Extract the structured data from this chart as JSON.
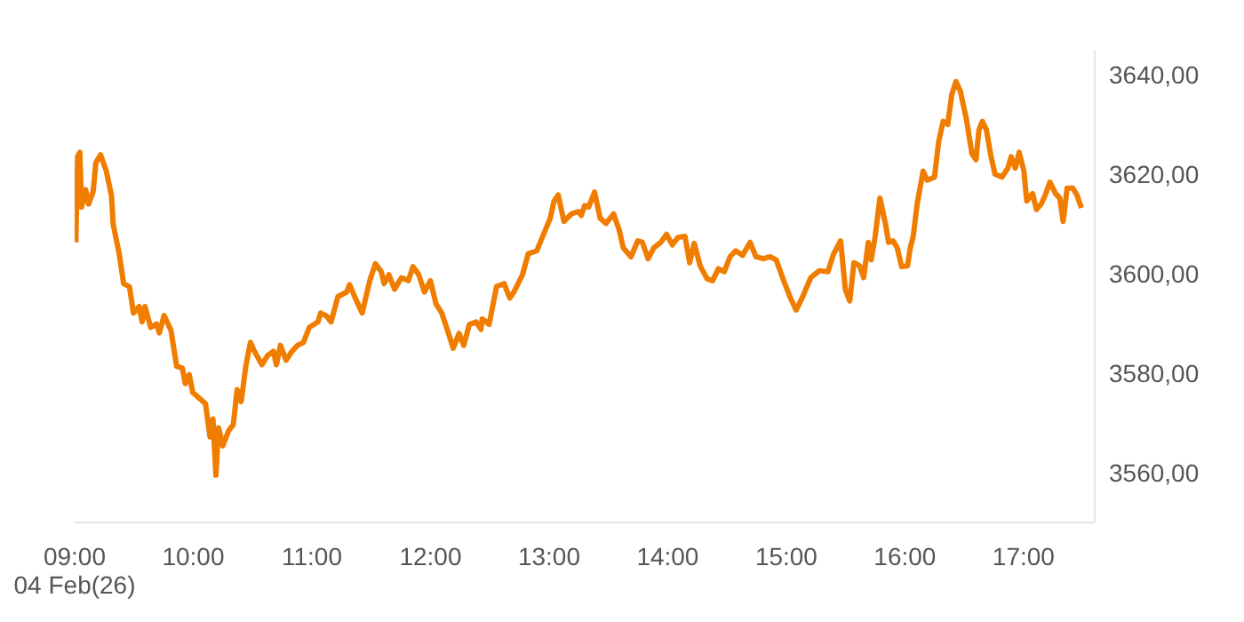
{
  "chart_data": {
    "type": "line",
    "marker": "none",
    "line_style": "solid",
    "grid": false,
    "legend": false,
    "xlim": [
      9,
      17.6
    ],
    "ylim": [
      3550,
      3645
    ],
    "xticks": [
      {
        "value": 9,
        "label": "09:00\n04 Feb(26)"
      },
      {
        "value": 10,
        "label": "10:00"
      },
      {
        "value": 11,
        "label": "11:00"
      },
      {
        "value": 12,
        "label": "12:00"
      },
      {
        "value": 13,
        "label": "13:00"
      },
      {
        "value": 14,
        "label": "14:00"
      },
      {
        "value": 15,
        "label": "15:00"
      },
      {
        "value": 16,
        "label": "16:00"
      },
      {
        "value": 17,
        "label": "17:00"
      }
    ],
    "yticks": [
      {
        "value": 3560,
        "label": "3560,00"
      },
      {
        "value": 3580,
        "label": "3580,00"
      },
      {
        "value": 3600,
        "label": "3600,00"
      },
      {
        "value": 3620,
        "label": "3620,00"
      },
      {
        "value": 3640,
        "label": "3640,00"
      }
    ],
    "series": [
      {
        "color": "#f07c00",
        "x": [
          9.01,
          9.025,
          9.044,
          9.058,
          9.092,
          9.117,
          9.156,
          9.179,
          9.219,
          9.267,
          9.31,
          9.325,
          9.375,
          9.413,
          9.462,
          9.496,
          9.544,
          9.569,
          9.593,
          9.641,
          9.69,
          9.714,
          9.754,
          9.812,
          9.86,
          9.908,
          9.933,
          9.966,
          9.996,
          10.054,
          10.103,
          10.141,
          10.166,
          10.191,
          10.214,
          10.249,
          10.297,
          10.337,
          10.37,
          10.404,
          10.443,
          10.482,
          10.516,
          10.579,
          10.628,
          10.676,
          10.701,
          10.735,
          10.783,
          10.832,
          10.88,
          10.929,
          10.978,
          11.051,
          11.074,
          11.124,
          11.162,
          11.22,
          11.293,
          11.318,
          11.366,
          11.424,
          11.488,
          11.536,
          11.585,
          11.609,
          11.649,
          11.697,
          11.755,
          11.813,
          11.853,
          11.901,
          11.949,
          11.999,
          12.047,
          12.095,
          12.144,
          12.192,
          12.241,
          12.28,
          12.328,
          12.386,
          12.426,
          12.436,
          12.494,
          12.557,
          12.62,
          12.669,
          12.703,
          12.776,
          12.824,
          12.897,
          12.946,
          13.009,
          13.042,
          13.077,
          13.125,
          13.188,
          13.246,
          13.271,
          13.3,
          13.334,
          13.383,
          13.431,
          13.48,
          13.544,
          13.592,
          13.625,
          13.69,
          13.748,
          13.786,
          13.835,
          13.883,
          13.942,
          13.99,
          14.039,
          14.087,
          14.146,
          14.185,
          14.223,
          14.273,
          14.331,
          14.379,
          14.427,
          14.477,
          14.525,
          14.573,
          14.631,
          14.695,
          14.743,
          14.806,
          14.864,
          14.914,
          14.987,
          15.035,
          15.083,
          15.133,
          15.206,
          15.278,
          15.351,
          15.399,
          15.458,
          15.497,
          15.535,
          15.57,
          15.618,
          15.652,
          15.691,
          15.716,
          15.749,
          15.789,
          15.837,
          15.862,
          15.9,
          15.935,
          15.972,
          16.022,
          16.045,
          16.07,
          16.103,
          16.153,
          16.187,
          16.249,
          16.284,
          16.322,
          16.361,
          16.395,
          16.43,
          16.468,
          16.517,
          16.565,
          16.599,
          16.624,
          16.653,
          16.687,
          16.726,
          16.759,
          16.818,
          16.867,
          16.896,
          16.93,
          16.963,
          17.003,
          17.027,
          17.076,
          17.109,
          17.149,
          17.188,
          17.222,
          17.27,
          17.305,
          17.334,
          17.367,
          17.415,
          17.45,
          17.488
        ],
        "values": [
          3606.3,
          3623.5,
          3624.4,
          3613.4,
          3616.9,
          3614,
          3616.5,
          3622.3,
          3623.9,
          3620.6,
          3615.8,
          3609.9,
          3604.1,
          3598,
          3597.4,
          3592.1,
          3593.4,
          3590.3,
          3593.4,
          3589.2,
          3589.9,
          3588.1,
          3591.6,
          3588.6,
          3581.4,
          3581,
          3577.9,
          3579.7,
          3576.1,
          3574.9,
          3573.9,
          3567.2,
          3570.8,
          3559.5,
          3569,
          3565.4,
          3568.4,
          3569.6,
          3576.7,
          3574.3,
          3581.4,
          3586.2,
          3584.4,
          3581.7,
          3583.6,
          3584.4,
          3581.7,
          3585.6,
          3582.6,
          3584.4,
          3585.6,
          3586.2,
          3589.2,
          3590.3,
          3592.1,
          3591.5,
          3590.3,
          3595.4,
          3596.3,
          3597.8,
          3595.1,
          3592.1,
          3598.6,
          3602,
          3600.4,
          3598,
          3599.8,
          3596.9,
          3599.2,
          3598.6,
          3601.4,
          3599.8,
          3596.3,
          3598.6,
          3593.9,
          3592.1,
          3588.6,
          3585,
          3588,
          3585.6,
          3589.8,
          3590.3,
          3588.8,
          3590.9,
          3589.8,
          3597.4,
          3598,
          3595.1,
          3596.3,
          3599.8,
          3604,
          3604.6,
          3607.5,
          3611.1,
          3614.6,
          3615.8,
          3610.5,
          3612,
          3612.5,
          3611.7,
          3613.7,
          3613.4,
          3616.4,
          3611.1,
          3610.1,
          3612,
          3608.7,
          3605.2,
          3603.4,
          3606.6,
          3606.3,
          3603,
          3605.2,
          3606.3,
          3607.9,
          3605.8,
          3607.3,
          3607.5,
          3602.2,
          3606.1,
          3601.6,
          3599,
          3598.6,
          3601,
          3600.4,
          3603.4,
          3604.6,
          3603.7,
          3606.3,
          3603.4,
          3603,
          3603.4,
          3602.8,
          3598,
          3595.1,
          3592.7,
          3595.1,
          3599.2,
          3600.6,
          3600.4,
          3604,
          3606.6,
          3596.9,
          3594.5,
          3602.2,
          3601.6,
          3599.2,
          3606.3,
          3602.8,
          3607.5,
          3615.2,
          3609.9,
          3606.3,
          3606.6,
          3605.2,
          3601.4,
          3601.6,
          3605.2,
          3607.5,
          3614,
          3620.6,
          3618.8,
          3619.4,
          3626.5,
          3630.6,
          3630,
          3636,
          3638.6,
          3636.6,
          3631.2,
          3624.1,
          3622.9,
          3628.9,
          3630.6,
          3628.9,
          3623.5,
          3620,
          3619.4,
          3621.2,
          3623.5,
          3621.2,
          3624.4,
          3620.6,
          3614.6,
          3616.1,
          3612.9,
          3614,
          3616.1,
          3618.4,
          3616.1,
          3615.2,
          3610.5,
          3617.2,
          3617.2,
          3615.8,
          3613.2
        ]
      }
    ]
  }
}
